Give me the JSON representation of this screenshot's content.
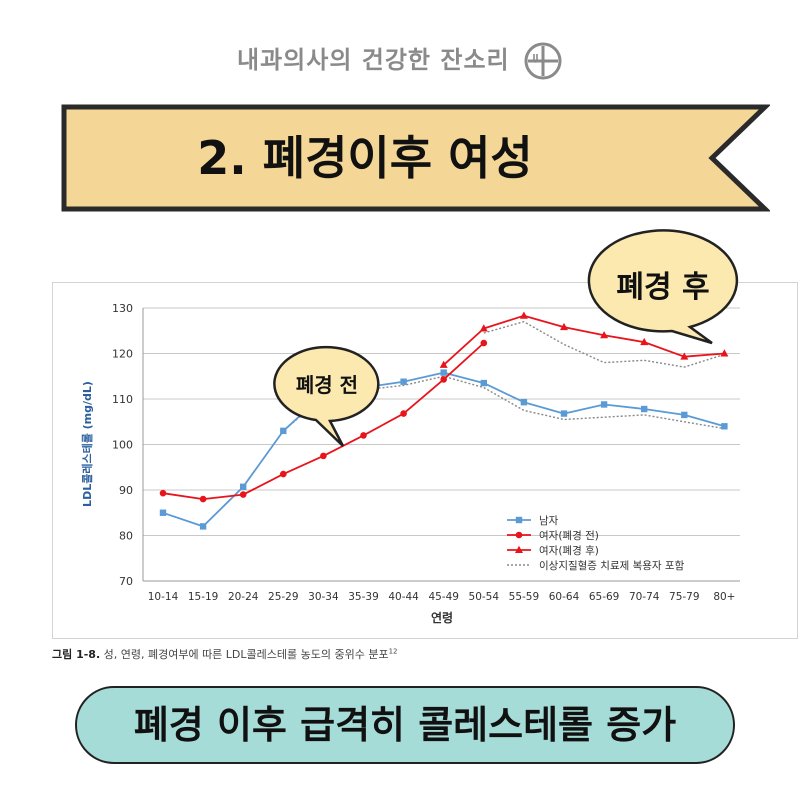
{
  "header": {
    "title": "내과의사의 건강한 잔소리"
  },
  "banner": {
    "title": "2. 폐경이후 여성"
  },
  "callouts": {
    "before": "폐경 전",
    "after": "폐경 후"
  },
  "caption": {
    "figure": "그림 1-8.",
    "text": "성, 연령, 폐경여부에 따른 LDL콜레스테롤 농도의 중위수 분포",
    "ref": "12"
  },
  "bottom_banner": {
    "text": "폐경 이후 급격히 콜레스테롤 증가"
  },
  "chart_data": {
    "type": "line",
    "xlabel": "연령",
    "ylabel": "LDL콜레스테롤 (mg/dL)",
    "ylim": [
      70,
      130
    ],
    "yticks": [
      70,
      80,
      90,
      100,
      110,
      120,
      130
    ],
    "grid": true,
    "legend_position": "bottom-right",
    "categories": [
      "10-14",
      "15-19",
      "20-24",
      "25-29",
      "30-34",
      "35-39",
      "40-44",
      "45-49",
      "50-54",
      "55-59",
      "60-64",
      "65-69",
      "70-74",
      "75-79",
      "80+"
    ],
    "series": [
      {
        "name": "남자",
        "color": "#5b9bd5",
        "marker": "square",
        "style": "solid",
        "values": [
          85,
          82,
          90.7,
          103,
          111,
          112.5,
          113.8,
          115.8,
          113.5,
          109.3,
          106.8,
          108.8,
          107.8,
          106.5,
          104
        ]
      },
      {
        "name": "여자(폐경 전)",
        "color": "#e8141b",
        "marker": "circle",
        "style": "solid",
        "values": [
          89.3,
          88,
          89,
          93.5,
          97.5,
          102,
          106.8,
          114.3,
          122.3,
          null,
          null,
          null,
          null,
          null,
          null
        ]
      },
      {
        "name": "여자(폐경 후)",
        "color": "#e8141b",
        "marker": "triangle",
        "style": "solid",
        "values": [
          null,
          null,
          null,
          null,
          null,
          null,
          null,
          117.5,
          125.5,
          128.3,
          125.8,
          124,
          122.5,
          119.3,
          120
        ]
      },
      {
        "name": "이상지질혈증 치료제 복용자 포함",
        "color": "#888888",
        "marker": "none",
        "style": "dotted",
        "segments": [
          {
            "values": [
              85,
              82,
              90.7,
              103,
              110.5,
              112,
              113,
              115,
              112.5,
              107.5,
              105.5,
              106,
              106.5,
              105,
              103.5
            ]
          },
          {
            "values": [
              null,
              null,
              null,
              null,
              null,
              null,
              null,
              null,
              124.5,
              127,
              122,
              118,
              118.5,
              117,
              119.8
            ]
          }
        ]
      }
    ]
  }
}
